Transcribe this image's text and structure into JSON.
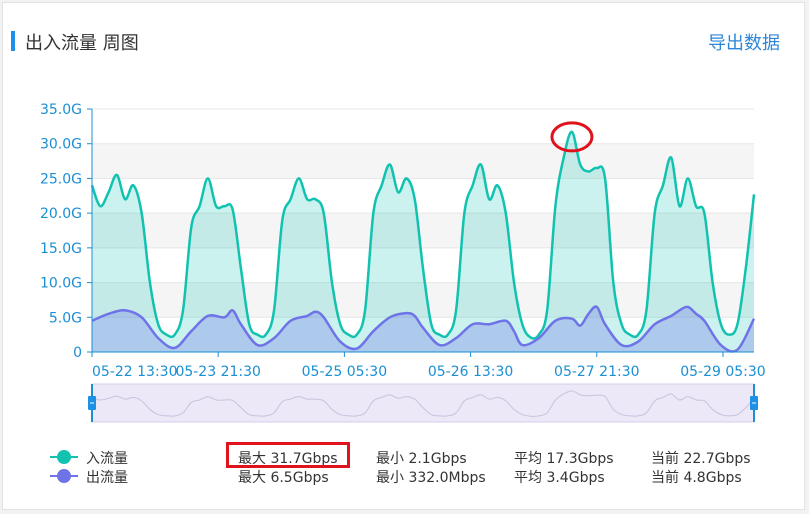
{
  "header": {
    "title": "出入流量 周图",
    "export_label": "导出数据"
  },
  "colors": {
    "inbound": "#11c2b0",
    "outbound": "#6f73e8",
    "accent": "#1e90e6",
    "highlight": "#e0121b"
  },
  "chart_data": {
    "type": "area",
    "ylabel": "",
    "xlabel": "",
    "ylim": [
      0,
      35
    ],
    "y_ticks": [
      "0",
      "5.0G",
      "10.0G",
      "15.0G",
      "20.0G",
      "25.0G",
      "30.0G",
      "35.0G"
    ],
    "x_ticks": [
      "05-22 13:30",
      "05-23 21:30",
      "05-25 05:30",
      "05-26 13:30",
      "05-27 21:30",
      "05-29 05:30"
    ],
    "grid": true,
    "series": [
      {
        "name": "入流量",
        "values": [
          [
            0,
            24
          ],
          [
            2,
            21
          ],
          [
            4,
            23
          ],
          [
            6,
            25.5
          ],
          [
            8,
            22
          ],
          [
            10,
            24
          ],
          [
            12,
            20
          ],
          [
            14,
            10
          ],
          [
            16,
            4
          ],
          [
            18,
            2.5
          ],
          [
            20,
            2.5
          ],
          [
            22,
            6
          ],
          [
            24,
            18
          ],
          [
            26,
            21
          ],
          [
            28,
            25
          ],
          [
            30,
            21
          ],
          [
            32,
            21
          ],
          [
            34,
            20.5
          ],
          [
            36,
            12
          ],
          [
            38,
            4
          ],
          [
            40,
            2.5
          ],
          [
            42,
            2.5
          ],
          [
            44,
            6
          ],
          [
            46,
            19
          ],
          [
            48,
            22
          ],
          [
            50,
            25
          ],
          [
            52,
            22
          ],
          [
            54,
            22
          ],
          [
            56,
            20
          ],
          [
            58,
            10
          ],
          [
            60,
            4
          ],
          [
            62,
            2.5
          ],
          [
            64,
            2.5
          ],
          [
            66,
            6
          ],
          [
            68,
            20
          ],
          [
            70,
            24
          ],
          [
            72,
            27
          ],
          [
            74,
            23
          ],
          [
            76,
            25
          ],
          [
            78,
            22
          ],
          [
            80,
            12
          ],
          [
            82,
            4
          ],
          [
            84,
            2.5
          ],
          [
            86,
            2.5
          ],
          [
            88,
            6
          ],
          [
            90,
            20
          ],
          [
            92,
            24
          ],
          [
            94,
            27
          ],
          [
            96,
            22
          ],
          [
            98,
            24
          ],
          [
            100,
            20
          ],
          [
            102,
            10
          ],
          [
            104,
            4
          ],
          [
            106,
            2.1
          ],
          [
            108,
            2.5
          ],
          [
            110,
            6
          ],
          [
            112,
            21
          ],
          [
            114,
            28
          ],
          [
            116,
            31.7
          ],
          [
            118,
            27
          ],
          [
            120,
            26
          ],
          [
            122,
            26.5
          ],
          [
            124,
            25
          ],
          [
            126,
            10
          ],
          [
            128,
            4
          ],
          [
            130,
            2.5
          ],
          [
            132,
            2.5
          ],
          [
            134,
            6
          ],
          [
            136,
            20
          ],
          [
            138,
            24
          ],
          [
            140,
            28
          ],
          [
            142,
            21
          ],
          [
            144,
            25
          ],
          [
            146,
            21
          ],
          [
            148,
            20
          ],
          [
            150,
            10
          ],
          [
            152,
            4
          ],
          [
            154,
            2.5
          ],
          [
            156,
            4
          ],
          [
            158,
            12
          ],
          [
            160,
            22.7
          ]
        ]
      },
      {
        "name": "出流量",
        "values": [
          [
            0,
            4.5
          ],
          [
            4,
            5.5
          ],
          [
            8,
            6.0
          ],
          [
            12,
            5.0
          ],
          [
            16,
            2.0
          ],
          [
            20,
            0.6
          ],
          [
            24,
            3.0
          ],
          [
            28,
            5.2
          ],
          [
            32,
            5.0
          ],
          [
            34,
            6.0
          ],
          [
            36,
            4.0
          ],
          [
            40,
            1.0
          ],
          [
            44,
            2.0
          ],
          [
            48,
            4.5
          ],
          [
            52,
            5.2
          ],
          [
            54,
            5.8
          ],
          [
            56,
            5.0
          ],
          [
            60,
            1.5
          ],
          [
            64,
            0.5
          ],
          [
            68,
            3.0
          ],
          [
            72,
            5.0
          ],
          [
            76,
            5.6
          ],
          [
            78,
            5.2
          ],
          [
            80,
            3.5
          ],
          [
            84,
            1.0
          ],
          [
            88,
            2.0
          ],
          [
            92,
            4.0
          ],
          [
            96,
            4.0
          ],
          [
            100,
            4.5
          ],
          [
            102,
            3.0
          ],
          [
            104,
            1.0
          ],
          [
            108,
            2.0
          ],
          [
            112,
            4.5
          ],
          [
            116,
            4.8
          ],
          [
            118,
            3.8
          ],
          [
            120,
            5.5
          ],
          [
            122,
            6.5
          ],
          [
            124,
            4.0
          ],
          [
            128,
            1.0
          ],
          [
            132,
            1.5
          ],
          [
            136,
            4.0
          ],
          [
            140,
            5.2
          ],
          [
            142,
            6.0
          ],
          [
            144,
            6.5
          ],
          [
            146,
            5.5
          ],
          [
            148,
            4.5
          ],
          [
            152,
            1.0
          ],
          [
            156,
            0.332
          ],
          [
            160,
            4.8
          ]
        ]
      }
    ]
  },
  "legend": [
    {
      "label": "入流量",
      "max": "最大 31.7Gbps",
      "min": "最小 2.1Gbps",
      "avg": "平均 17.3Gbps",
      "current": "当前 22.7Gbps"
    },
    {
      "label": "出流量",
      "max": "最大 6.5Gbps",
      "min": "最小 332.0Mbps",
      "avg": "平均 3.4Gbps",
      "current": "当前 4.8Gbps"
    }
  ]
}
